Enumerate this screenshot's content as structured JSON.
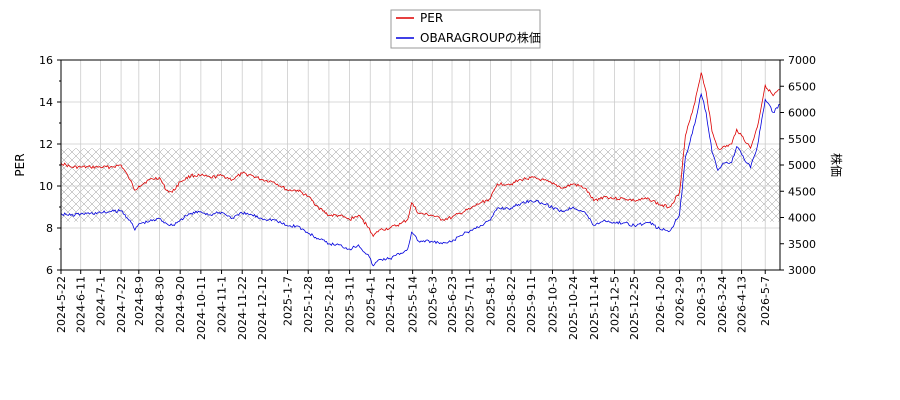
{
  "chart_data": {
    "type": "line",
    "legend": {
      "placement": "top-center",
      "entries": [
        "PER",
        "OBARAGROUPの株価"
      ]
    },
    "grid": true,
    "left_axis": {
      "label": "PER",
      "range": [
        6,
        16
      ],
      "ticks": [
        "6",
        "8",
        "10",
        "12",
        "14",
        "16"
      ]
    },
    "right_axis": {
      "label": "株価",
      "range": [
        3000,
        7000
      ],
      "ticks": [
        "3000",
        "3500",
        "4000",
        "4500",
        "5000",
        "5500",
        "6000",
        "6500",
        "7000"
      ]
    },
    "x_range": [
      "2024-05-22",
      "2026-05-22"
    ],
    "x_ticks": [
      "2024-5-22",
      "2024-6-11",
      "2024-7-1",
      "2024-7-22",
      "2024-8-9",
      "2024-8-30",
      "2024-9-20",
      "2024-10-11",
      "2024-11-1",
      "2024-11-22",
      "2024-12-12",
      "2025-1-7",
      "2025-1-28",
      "2025-2-18",
      "2025-3-11",
      "2025-4-1",
      "2025-4-21",
      "2025-5-14",
      "2025-6-3",
      "2025-6-23",
      "2025-7-11",
      "2025-8-1",
      "2025-8-22",
      "2025-9-11",
      "2025-10-3",
      "2025-10-24",
      "2025-11-14",
      "2025-12-5",
      "2025-12-25",
      "2026-1-20",
      "2026-2-9",
      "2026-3-3",
      "2026-3-24",
      "2026-4-13",
      "2026-5-7"
    ],
    "band": {
      "label": "",
      "from": 8.3,
      "to": 11.8
    },
    "colors": {
      "per": "#dd0000",
      "price": "#0000dd",
      "grid": "#cccccc",
      "band_hatch": "#999999"
    },
    "series": [
      {
        "name": "PER",
        "axis": "left",
        "points": [
          [
            "2024-05-22",
            11.1
          ],
          [
            "2024-06-01",
            10.9
          ],
          [
            "2024-06-11",
            10.9
          ],
          [
            "2024-06-21",
            10.9
          ],
          [
            "2024-07-01",
            10.9
          ],
          [
            "2024-07-11",
            10.9
          ],
          [
            "2024-07-22",
            11.0
          ],
          [
            "2024-07-31",
            10.3
          ],
          [
            "2024-08-05",
            9.8
          ],
          [
            "2024-08-09",
            10.0
          ],
          [
            "2024-08-20",
            10.3
          ],
          [
            "2024-08-30",
            10.4
          ],
          [
            "2024-09-06",
            9.8
          ],
          [
            "2024-09-12",
            9.7
          ],
          [
            "2024-09-20",
            10.2
          ],
          [
            "2024-10-01",
            10.5
          ],
          [
            "2024-10-11",
            10.5
          ],
          [
            "2024-10-21",
            10.4
          ],
          [
            "2024-11-01",
            10.5
          ],
          [
            "2024-11-12",
            10.3
          ],
          [
            "2024-11-22",
            10.6
          ],
          [
            "2024-12-02",
            10.5
          ],
          [
            "2024-12-12",
            10.3
          ],
          [
            "2024-12-24",
            10.2
          ],
          [
            "2025-01-07",
            9.8
          ],
          [
            "2025-01-17",
            9.8
          ],
          [
            "2025-01-28",
            9.5
          ],
          [
            "2025-02-07",
            9.0
          ],
          [
            "2025-02-18",
            8.6
          ],
          [
            "2025-02-28",
            8.6
          ],
          [
            "2025-03-11",
            8.4
          ],
          [
            "2025-03-20",
            8.6
          ],
          [
            "2025-03-31",
            8.0
          ],
          [
            "2025-04-04",
            7.6
          ],
          [
            "2025-04-10",
            7.9
          ],
          [
            "2025-04-21",
            8.0
          ],
          [
            "2025-05-02",
            8.2
          ],
          [
            "2025-05-09",
            8.4
          ],
          [
            "2025-05-13",
            9.2
          ],
          [
            "2025-05-20",
            8.7
          ],
          [
            "2025-06-03",
            8.6
          ],
          [
            "2025-06-13",
            8.4
          ],
          [
            "2025-06-23",
            8.5
          ],
          [
            "2025-07-01",
            8.7
          ],
          [
            "2025-07-11",
            8.9
          ],
          [
            "2025-07-22",
            9.2
          ],
          [
            "2025-08-01",
            9.4
          ],
          [
            "2025-08-08",
            10.1
          ],
          [
            "2025-08-22",
            10.1
          ],
          [
            "2025-09-01",
            10.3
          ],
          [
            "2025-09-11",
            10.4
          ],
          [
            "2025-09-22",
            10.3
          ],
          [
            "2025-10-03",
            10.1
          ],
          [
            "2025-10-14",
            9.9
          ],
          [
            "2025-10-24",
            10.1
          ],
          [
            "2025-11-05",
            9.9
          ],
          [
            "2025-11-14",
            9.3
          ],
          [
            "2025-11-25",
            9.5
          ],
          [
            "2025-12-05",
            9.4
          ],
          [
            "2025-12-15",
            9.4
          ],
          [
            "2025-12-25",
            9.3
          ],
          [
            "2026-01-09",
            9.4
          ],
          [
            "2026-01-20",
            9.1
          ],
          [
            "2026-01-30",
            9.0
          ],
          [
            "2026-02-09",
            9.7
          ],
          [
            "2026-02-15",
            12.4
          ],
          [
            "2026-02-22",
            13.5
          ],
          [
            "2026-03-03",
            15.4
          ],
          [
            "2026-03-08",
            14.5
          ],
          [
            "2026-03-14",
            12.6
          ],
          [
            "2026-03-20",
            11.8
          ],
          [
            "2026-03-24",
            11.8
          ],
          [
            "2026-04-03",
            12.0
          ],
          [
            "2026-04-08",
            12.7
          ],
          [
            "2026-04-13",
            12.4
          ],
          [
            "2026-04-22",
            11.8
          ],
          [
            "2026-04-29",
            12.8
          ],
          [
            "2026-05-07",
            14.8
          ],
          [
            "2026-05-15",
            14.3
          ],
          [
            "2026-05-22",
            14.6
          ]
        ]
      },
      {
        "name": "OBARAGROUPの株価",
        "axis": "right",
        "points": [
          [
            "2024-05-22",
            4080
          ],
          [
            "2024-06-01",
            4040
          ],
          [
            "2024-06-11",
            4070
          ],
          [
            "2024-06-21",
            4080
          ],
          [
            "2024-07-01",
            4090
          ],
          [
            "2024-07-11",
            4110
          ],
          [
            "2024-07-22",
            4130
          ],
          [
            "2024-07-31",
            3950
          ],
          [
            "2024-08-05",
            3760
          ],
          [
            "2024-08-09",
            3880
          ],
          [
            "2024-08-20",
            3930
          ],
          [
            "2024-08-30",
            3980
          ],
          [
            "2024-09-06",
            3890
          ],
          [
            "2024-09-12",
            3850
          ],
          [
            "2024-09-20",
            3950
          ],
          [
            "2024-10-01",
            4080
          ],
          [
            "2024-10-11",
            4110
          ],
          [
            "2024-10-21",
            4050
          ],
          [
            "2024-11-01",
            4100
          ],
          [
            "2024-11-12",
            3990
          ],
          [
            "2024-11-22",
            4080
          ],
          [
            "2024-12-02",
            4050
          ],
          [
            "2024-12-12",
            3980
          ],
          [
            "2024-12-24",
            3960
          ],
          [
            "2025-01-07",
            3840
          ],
          [
            "2025-01-17",
            3840
          ],
          [
            "2025-01-28",
            3700
          ],
          [
            "2025-02-07",
            3600
          ],
          [
            "2025-02-18",
            3500
          ],
          [
            "2025-02-28",
            3480
          ],
          [
            "2025-03-11",
            3400
          ],
          [
            "2025-03-20",
            3480
          ],
          [
            "2025-03-31",
            3250
          ],
          [
            "2025-04-04",
            3080
          ],
          [
            "2025-04-10",
            3200
          ],
          [
            "2025-04-21",
            3220
          ],
          [
            "2025-05-02",
            3320
          ],
          [
            "2025-05-09",
            3400
          ],
          [
            "2025-05-13",
            3720
          ],
          [
            "2025-05-20",
            3550
          ],
          [
            "2025-06-03",
            3540
          ],
          [
            "2025-06-13",
            3500
          ],
          [
            "2025-06-23",
            3540
          ],
          [
            "2025-07-01",
            3650
          ],
          [
            "2025-07-11",
            3740
          ],
          [
            "2025-07-22",
            3850
          ],
          [
            "2025-08-01",
            3950
          ],
          [
            "2025-08-08",
            4180
          ],
          [
            "2025-08-22",
            4180
          ],
          [
            "2025-09-01",
            4270
          ],
          [
            "2025-09-11",
            4330
          ],
          [
            "2025-09-22",
            4280
          ],
          [
            "2025-10-03",
            4190
          ],
          [
            "2025-10-14",
            4120
          ],
          [
            "2025-10-24",
            4200
          ],
          [
            "2025-11-05",
            4100
          ],
          [
            "2025-11-14",
            3850
          ],
          [
            "2025-11-25",
            3950
          ],
          [
            "2025-12-05",
            3900
          ],
          [
            "2025-12-15",
            3900
          ],
          [
            "2025-12-25",
            3850
          ],
          [
            "2026-01-09",
            3900
          ],
          [
            "2026-01-20",
            3780
          ],
          [
            "2026-01-30",
            3740
          ],
          [
            "2026-02-09",
            4050
          ],
          [
            "2026-02-15",
            5150
          ],
          [
            "2026-02-22",
            5600
          ],
          [
            "2026-03-03",
            6350
          ],
          [
            "2026-03-08",
            6000
          ],
          [
            "2026-03-14",
            5250
          ],
          [
            "2026-03-20",
            4900
          ],
          [
            "2026-03-24",
            5000
          ],
          [
            "2026-04-03",
            5050
          ],
          [
            "2026-04-08",
            5350
          ],
          [
            "2026-04-13",
            5200
          ],
          [
            "2026-04-22",
            4950
          ],
          [
            "2026-04-29",
            5350
          ],
          [
            "2026-05-07",
            6250
          ],
          [
            "2026-05-15",
            6000
          ],
          [
            "2026-05-22",
            6150
          ]
        ]
      }
    ]
  }
}
